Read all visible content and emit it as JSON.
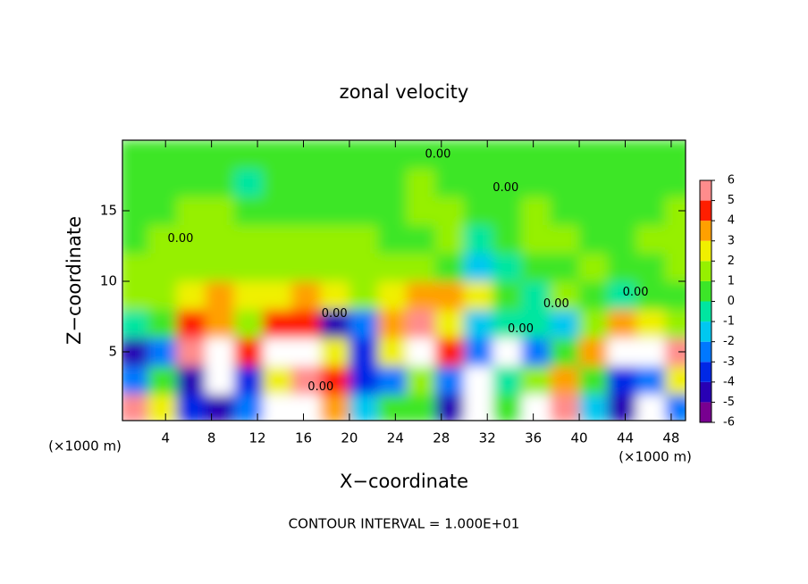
{
  "chart_data": {
    "type": "heatmap",
    "title": "zonal velocity",
    "xlabel": "X−coordinate",
    "ylabel": "Z−coordinate",
    "x_unit": "(×1000 m)",
    "y_unit": "(×1000 m)",
    "footnote": "CONTOUR INTERVAL = 1.000E+01",
    "xlim": [
      0.25,
      49.25
    ],
    "ylim": [
      0.125,
      20
    ],
    "xticks": [
      4,
      8,
      12,
      16,
      20,
      24,
      28,
      32,
      36,
      40,
      44,
      48
    ],
    "yticks": [
      5,
      10,
      15
    ],
    "x": [
      1.25,
      3.75,
      6.25,
      8.75,
      11.25,
      13.75,
      16.25,
      18.75,
      21.25,
      23.75,
      26.25,
      28.75,
      31.25,
      33.75,
      36.25,
      38.75,
      41.25,
      43.75,
      46.25,
      48.75
    ],
    "y": [
      1,
      3,
      5,
      7,
      9,
      11,
      13,
      15,
      17,
      19
    ],
    "z": [
      [
        6,
        2,
        -4,
        -5,
        -3,
        7,
        7,
        3,
        -2,
        0,
        0,
        -5,
        -7,
        0,
        7,
        5,
        -2,
        -5,
        -7,
        -3
      ],
      [
        -3,
        0,
        -5,
        -7,
        -4,
        2,
        6,
        4,
        -4,
        -3,
        1,
        -3,
        -7,
        -1,
        1,
        3,
        0,
        -4,
        -3,
        2
      ],
      [
        -5,
        -3,
        6,
        7,
        4,
        7,
        7,
        2,
        -4,
        2,
        7,
        4,
        -3,
        -7,
        -3,
        0,
        3,
        7,
        7,
        5
      ],
      [
        -1,
        0,
        4,
        3,
        1,
        4,
        4,
        -5,
        -3,
        3,
        5,
        2,
        -2,
        -1,
        -1,
        -2,
        1,
        3,
        2,
        1
      ],
      [
        1,
        1,
        2,
        3,
        2,
        2,
        3,
        2,
        1,
        2,
        3,
        3,
        2,
        0,
        -1,
        1,
        0,
        -1,
        0,
        0
      ],
      [
        1,
        1,
        1,
        1,
        1,
        1,
        1,
        1,
        1,
        1,
        1,
        0,
        -2,
        -1,
        0,
        0,
        1,
        0,
        0,
        1
      ],
      [
        0,
        1,
        1,
        1,
        1,
        1,
        1,
        1,
        1,
        0,
        0,
        1,
        -1,
        0,
        1,
        1,
        0,
        0,
        1,
        1
      ],
      [
        0,
        0,
        1,
        1,
        0,
        0,
        0,
        0,
        0,
        0,
        1,
        1,
        0,
        0,
        1,
        0,
        0,
        0,
        0,
        1
      ],
      [
        0,
        0,
        0,
        0,
        -1,
        0,
        0,
        0,
        0,
        0,
        1,
        0,
        0,
        0,
        0,
        0,
        0,
        0,
        0,
        0
      ],
      [
        0,
        0,
        0,
        0,
        0,
        0,
        0,
        0,
        0,
        0,
        0,
        0,
        0,
        0,
        0,
        0,
        0,
        0,
        0,
        0
      ]
    ],
    "colorbar_ticks": [
      -6,
      -5,
      -4,
      -3,
      -2,
      -1,
      0,
      1,
      2,
      3,
      4,
      5,
      6
    ],
    "colors": [
      "#780090",
      "#2800b4",
      "#0028e6",
      "#0078ff",
      "#00c8f0",
      "#00e6a0",
      "#3ce628",
      "#96f000",
      "#f0f000",
      "#ffa000",
      "#ff1e00",
      "#ff8c8c"
    ],
    "out_of_range_color": "#ffffff",
    "contour_labels": [
      {
        "label": "0.00",
        "x": 27.7,
        "y": 19
      },
      {
        "label": "0.00",
        "x": 33.6,
        "y": 16.6
      },
      {
        "label": "0.00",
        "x": 5.3,
        "y": 13
      },
      {
        "label": "0.00",
        "x": 18.7,
        "y": 7.7
      },
      {
        "label": "0.00",
        "x": 34.9,
        "y": 6.6
      },
      {
        "label": "0.00",
        "x": 38,
        "y": 8.4
      },
      {
        "label": "0.00",
        "x": 44.9,
        "y": 9.2
      },
      {
        "label": "0.00",
        "x": 17.5,
        "y": 2.5
      }
    ]
  }
}
